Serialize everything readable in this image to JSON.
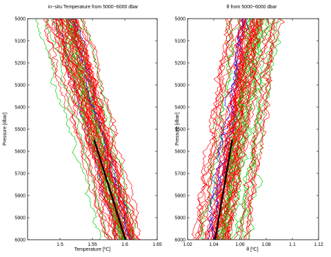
{
  "figure": {
    "background": "#ffffff",
    "series_colors": [
      "#ff0000",
      "#00cc00",
      "#0000ff"
    ],
    "fit_color": "#000000"
  },
  "chart_data": [
    {
      "type": "line",
      "title": "in−situ Temperature from 5000−6000 dbar",
      "xlabel": "Temperature [ºC]",
      "ylabel": "Pressure [dbar]",
      "xlim": [
        1.45,
        1.65
      ],
      "ylim": [
        5000,
        6000
      ],
      "y_reversed": true,
      "grid": false,
      "xticks": [
        1.5,
        1.55,
        1.6,
        1.65
      ],
      "xtick_labels": [
        "1.5",
        "1.55",
        "1.6",
        "1.65"
      ],
      "yticks": [
        5000,
        5100,
        5200,
        5300,
        5400,
        5500,
        5600,
        5700,
        5800,
        5900,
        6000
      ],
      "ytick_labels": [
        "5000",
        "5100",
        "5200",
        "5300",
        "5400",
        "5500",
        "5600",
        "5700",
        "5800",
        "5900",
        "6000"
      ],
      "profiles": {
        "count": 60,
        "center_at_top": 1.506,
        "center_at_bottom": 1.598,
        "spread_at_top": 0.018,
        "spread_at_bottom": 0.014
      },
      "fit_line": {
        "p": [
          5550,
          6000
        ],
        "x": [
          1.553,
          1.601
        ]
      }
    },
    {
      "type": "line",
      "title": "θ from 5000−6000 dbar",
      "xlabel": "θ [ºC]",
      "ylabel": "Pressure [dbar]",
      "xlim": [
        1.02,
        1.12
      ],
      "ylim": [
        5000,
        6000
      ],
      "y_reversed": true,
      "grid": false,
      "xticks": [
        1.02,
        1.04,
        1.06,
        1.08,
        1.1,
        1.12
      ],
      "xtick_labels": [
        "1.02",
        "1.04",
        "1.06",
        "1.08",
        "1.1",
        "1.12"
      ],
      "yticks": [
        5000,
        5100,
        5200,
        5300,
        5400,
        5500,
        5600,
        5700,
        5800,
        5900,
        6000
      ],
      "ytick_labels": [
        "5000",
        "5100",
        "5200",
        "5300",
        "5400",
        "5500",
        "5600",
        "5700",
        "5800",
        "5900",
        "6000"
      ],
      "profiles": {
        "count": 60,
        "center_at_top": 1.068,
        "center_at_bottom": 1.043,
        "spread_at_top": 0.01,
        "spread_at_bottom": 0.009
      },
      "fit_line": {
        "p": [
          5550,
          6000
        ],
        "x": [
          1.054,
          1.041
        ]
      }
    }
  ]
}
